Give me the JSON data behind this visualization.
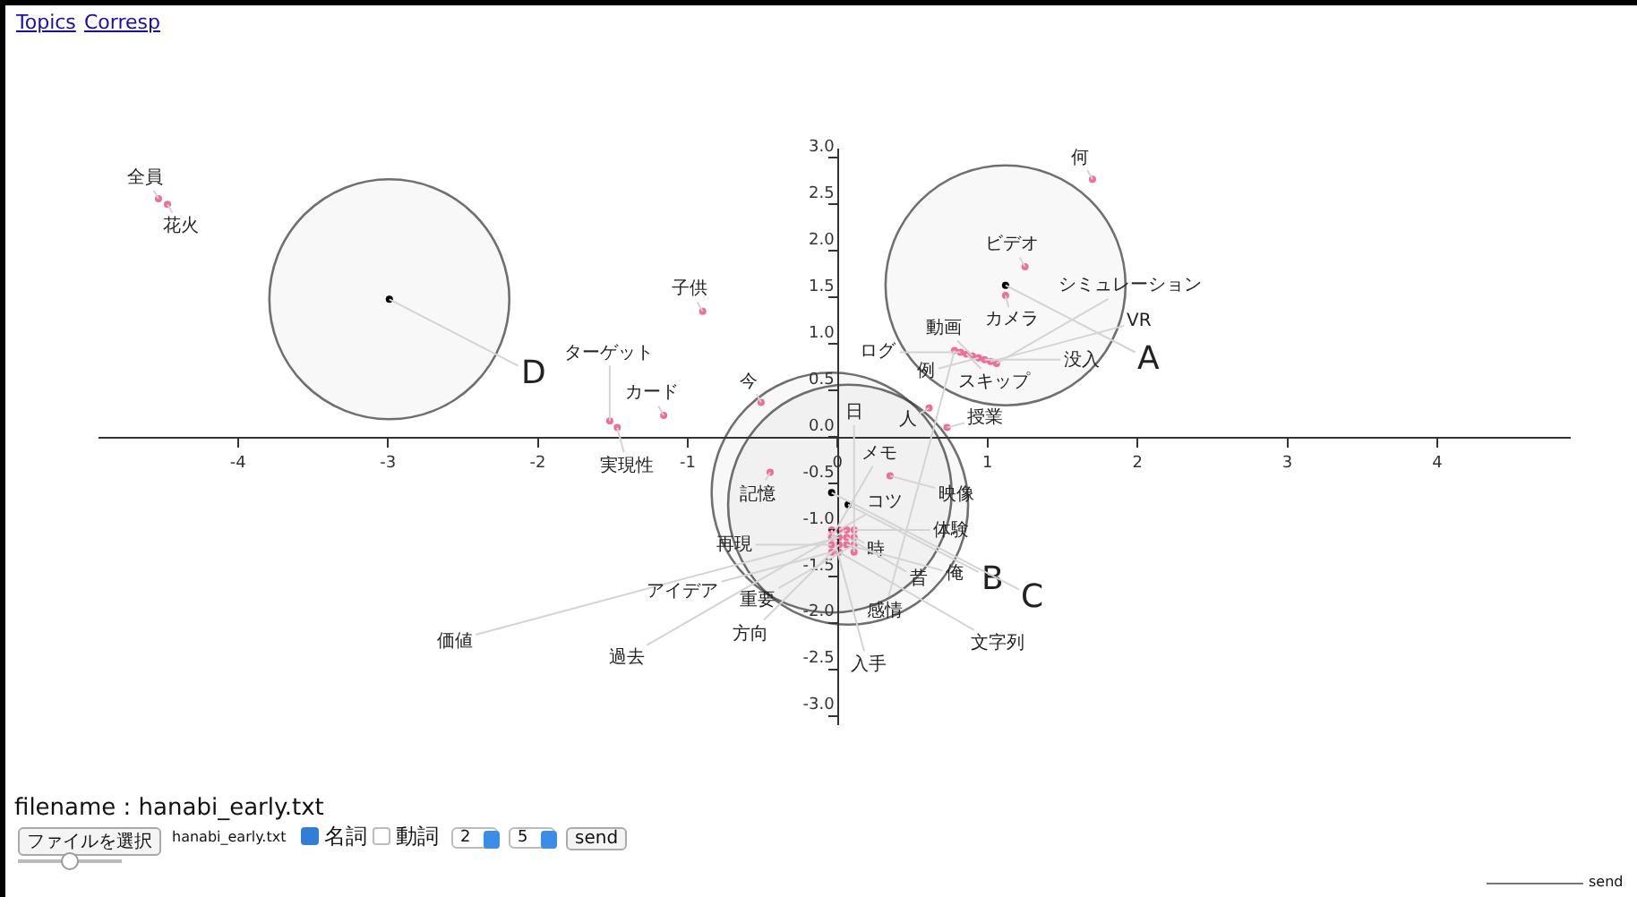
{
  "chart_data": {
    "type": "scatter",
    "xlim": [
      -4.93,
      4.89
    ],
    "ylim": [
      -3.1,
      3.1
    ],
    "xticks": [
      -4,
      -3,
      -2,
      -1,
      0,
      1,
      2,
      3,
      4
    ],
    "yticks": [
      {
        "value": -3,
        "label": "-3.0"
      },
      {
        "value": -2.5,
        "label": "-2.5"
      },
      {
        "value": -2,
        "label": "-2.0"
      },
      {
        "value": -1.5,
        "label": "-1.5"
      },
      {
        "value": -1,
        "label": "-1.0"
      },
      {
        "value": -0.5,
        "label": "-0.5"
      },
      {
        "value": 0,
        "label": "0.0"
      },
      {
        "value": 0.5,
        "label": "0.5"
      },
      {
        "value": 1,
        "label": "1.0"
      },
      {
        "value": 1.5,
        "label": "1.5"
      },
      {
        "value": 2,
        "label": "2.0"
      },
      {
        "value": 2.5,
        "label": "2.5"
      },
      {
        "value": 3,
        "label": "3.0"
      }
    ],
    "marker": "circle",
    "series": [
      {
        "color": "#f06c9b",
        "x": [
          1.7,
          1.25,
          1.12,
          0.86,
          0.9,
          1.06,
          0.94,
          0.98,
          0.82,
          1.02,
          0.78,
          0.61,
          0.73,
          0.35,
          -0.51,
          -0.9,
          -1.16,
          -1.52,
          -1.47,
          -4.53,
          -4.47,
          -0.45,
          0.11,
          0.11,
          -0.04,
          0.01,
          0.06,
          -0.04,
          0.01,
          0.06,
          -0.04,
          0.11,
          0.11,
          0.06,
          0.01,
          0.01,
          -0.04
        ],
        "values": [
          2.77,
          1.83,
          1.52,
          0.89,
          0.87,
          0.79,
          0.85,
          0.83,
          0.91,
          0.81,
          0.93,
          0.31,
          0.1,
          -0.42,
          0.37,
          1.35,
          0.23,
          0.17,
          0.1,
          2.56,
          2.5,
          -0.38,
          -1.0,
          -1.08,
          -1.0,
          -1.0,
          -1.0,
          -1.08,
          -1.08,
          -1.08,
          -1.16,
          -1.24,
          -1.16,
          -1.16,
          -1.24,
          -1.16,
          -1.24
        ],
        "value_labels": [
          "何",
          "ビデオ",
          "カメラ",
          "スキップ",
          "動画",
          "シミュレーション",
          "例",
          "没入",
          "ログ",
          "VR",
          "感情",
          "人",
          "授業",
          "映像",
          "今",
          "子供",
          "カード",
          "ターゲット",
          "実現性",
          "全員",
          "花火",
          "記憶",
          "体験",
          "時",
          "入手",
          "コツ",
          "過去",
          "メモ",
          "価値",
          "昔",
          "再現",
          "日",
          "重要",
          "俺",
          "文字列",
          "方向",
          "アイデア"
        ]
      },
      {
        "type": "bubble",
        "color": "#333333",
        "x": [
          1.12,
          0.07,
          -0.04,
          -2.99
        ],
        "values": [
          1.63,
          -0.73,
          -0.6,
          1.48
        ],
        "sizes": [
          1,
          1,
          1,
          1
        ],
        "value_labels": [
          "A",
          "B",
          "C",
          "D"
        ]
      },
      {
        "color": "#000000",
        "x": [
          1.12,
          0.07,
          -0.04,
          -2.99
        ],
        "values": [
          1.63,
          -0.73,
          -0.6,
          1.48
        ]
      }
    ],
    "annotations": [
      "Topics",
      "Corresp",
      "filename : hanabi_early.txt",
      "ファイルを選択",
      "hanabi_early.txt",
      "名詞",
      "動詞",
      "2",
      "5",
      "send",
      "send"
    ]
  }
}
